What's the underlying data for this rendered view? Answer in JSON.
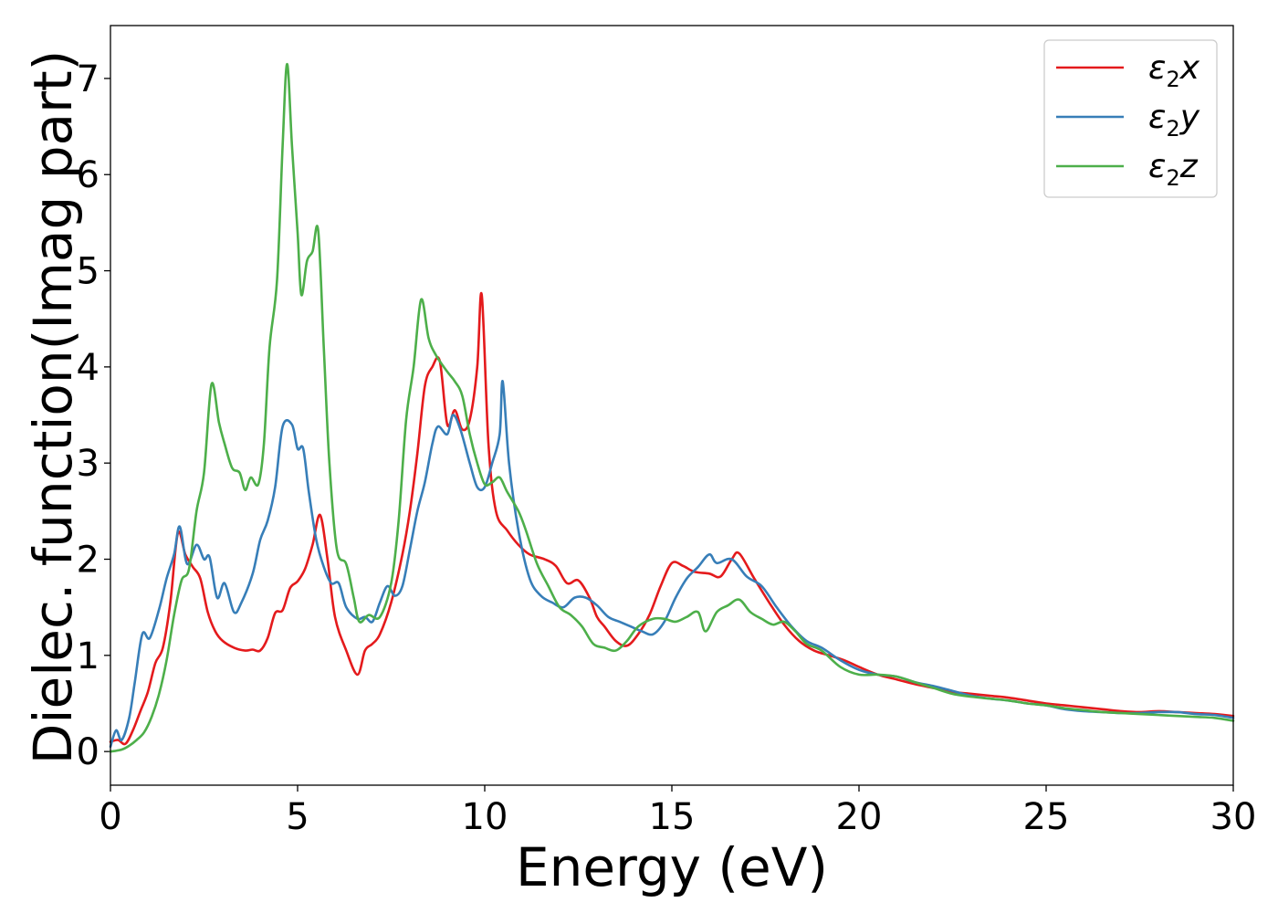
{
  "chart_data": {
    "type": "line",
    "title": "",
    "xlabel": "Energy (eV)",
    "ylabel": "Dielec. function(Imag part)",
    "xlim": [
      0,
      30
    ],
    "ylim": [
      -0.35,
      7.55
    ],
    "x_ticks": [
      0,
      5,
      10,
      15,
      20,
      25,
      30
    ],
    "y_ticks": [
      0,
      1,
      2,
      3,
      4,
      5,
      6,
      7
    ],
    "grid": false,
    "legend_position": "top-right",
    "series": [
      {
        "name": "ε2x",
        "legend": {
          "base": "ε",
          "sub": "2",
          "suffix": "x"
        },
        "color": "#e41a1c",
        "points": [
          [
            0,
            0.1
          ],
          [
            0.2,
            0.12
          ],
          [
            0.4,
            0.08
          ],
          [
            0.6,
            0.22
          ],
          [
            0.8,
            0.42
          ],
          [
            1.0,
            0.62
          ],
          [
            1.2,
            0.92
          ],
          [
            1.4,
            1.08
          ],
          [
            1.6,
            1.55
          ],
          [
            1.8,
            2.27
          ],
          [
            2.0,
            2.05
          ],
          [
            2.2,
            1.92
          ],
          [
            2.4,
            1.8
          ],
          [
            2.6,
            1.45
          ],
          [
            2.8,
            1.25
          ],
          [
            3.0,
            1.15
          ],
          [
            3.3,
            1.08
          ],
          [
            3.6,
            1.05
          ],
          [
            3.8,
            1.06
          ],
          [
            4.0,
            1.05
          ],
          [
            4.2,
            1.18
          ],
          [
            4.4,
            1.44
          ],
          [
            4.6,
            1.47
          ],
          [
            4.8,
            1.7
          ],
          [
            5.0,
            1.77
          ],
          [
            5.2,
            1.9
          ],
          [
            5.4,
            2.15
          ],
          [
            5.6,
            2.46
          ],
          [
            5.8,
            2.0
          ],
          [
            6.0,
            1.4
          ],
          [
            6.3,
            1.05
          ],
          [
            6.6,
            0.8
          ],
          [
            6.8,
            1.05
          ],
          [
            7.0,
            1.12
          ],
          [
            7.2,
            1.22
          ],
          [
            7.5,
            1.55
          ],
          [
            7.8,
            2.05
          ],
          [
            8.0,
            2.5
          ],
          [
            8.2,
            3.1
          ],
          [
            8.4,
            3.8
          ],
          [
            8.6,
            4.0
          ],
          [
            8.8,
            4.06
          ],
          [
            9.0,
            3.4
          ],
          [
            9.2,
            3.55
          ],
          [
            9.4,
            3.35
          ],
          [
            9.6,
            3.45
          ],
          [
            9.8,
            4.0
          ],
          [
            9.92,
            4.75
          ],
          [
            10.1,
            3.2
          ],
          [
            10.3,
            2.5
          ],
          [
            10.6,
            2.3
          ],
          [
            10.9,
            2.15
          ],
          [
            11.2,
            2.05
          ],
          [
            11.6,
            2.0
          ],
          [
            11.9,
            1.93
          ],
          [
            12.2,
            1.75
          ],
          [
            12.5,
            1.78
          ],
          [
            12.8,
            1.6
          ],
          [
            13.0,
            1.4
          ],
          [
            13.2,
            1.3
          ],
          [
            13.5,
            1.15
          ],
          [
            13.8,
            1.1
          ],
          [
            14.1,
            1.22
          ],
          [
            14.4,
            1.42
          ],
          [
            14.7,
            1.72
          ],
          [
            15.0,
            1.96
          ],
          [
            15.3,
            1.93
          ],
          [
            15.6,
            1.87
          ],
          [
            16.0,
            1.85
          ],
          [
            16.3,
            1.82
          ],
          [
            16.6,
            2.0
          ],
          [
            16.8,
            2.06
          ],
          [
            17.2,
            1.8
          ],
          [
            17.6,
            1.55
          ],
          [
            18.0,
            1.32
          ],
          [
            18.4,
            1.15
          ],
          [
            18.8,
            1.05
          ],
          [
            19.2,
            1.0
          ],
          [
            19.6,
            0.95
          ],
          [
            20.0,
            0.88
          ],
          [
            20.5,
            0.8
          ],
          [
            21.0,
            0.75
          ],
          [
            21.5,
            0.7
          ],
          [
            22.0,
            0.66
          ],
          [
            22.5,
            0.62
          ],
          [
            23.0,
            0.6
          ],
          [
            23.5,
            0.58
          ],
          [
            24.0,
            0.56
          ],
          [
            24.5,
            0.53
          ],
          [
            25.0,
            0.5
          ],
          [
            25.5,
            0.48
          ],
          [
            26.0,
            0.46
          ],
          [
            26.5,
            0.44
          ],
          [
            27.0,
            0.42
          ],
          [
            27.5,
            0.41
          ],
          [
            28.0,
            0.42
          ],
          [
            28.5,
            0.41
          ],
          [
            29.0,
            0.4
          ],
          [
            29.5,
            0.39
          ],
          [
            30.0,
            0.37
          ]
        ]
      },
      {
        "name": "ε2y",
        "legend": {
          "base": "ε",
          "sub": "2",
          "suffix": "y"
        },
        "color": "#377eb8",
        "points": [
          [
            0,
            0.05
          ],
          [
            0.15,
            0.22
          ],
          [
            0.3,
            0.12
          ],
          [
            0.5,
            0.35
          ],
          [
            0.65,
            0.72
          ],
          [
            0.85,
            1.22
          ],
          [
            1.05,
            1.18
          ],
          [
            1.3,
            1.48
          ],
          [
            1.5,
            1.8
          ],
          [
            1.7,
            2.05
          ],
          [
            1.85,
            2.34
          ],
          [
            2.05,
            1.95
          ],
          [
            2.3,
            2.15
          ],
          [
            2.5,
            2.0
          ],
          [
            2.65,
            2.02
          ],
          [
            2.85,
            1.6
          ],
          [
            3.05,
            1.75
          ],
          [
            3.3,
            1.45
          ],
          [
            3.5,
            1.55
          ],
          [
            3.8,
            1.85
          ],
          [
            4.0,
            2.2
          ],
          [
            4.2,
            2.4
          ],
          [
            4.4,
            2.75
          ],
          [
            4.6,
            3.38
          ],
          [
            4.85,
            3.4
          ],
          [
            5.0,
            3.15
          ],
          [
            5.15,
            3.15
          ],
          [
            5.3,
            2.7
          ],
          [
            5.5,
            2.2
          ],
          [
            5.7,
            1.92
          ],
          [
            5.9,
            1.75
          ],
          [
            6.1,
            1.75
          ],
          [
            6.3,
            1.5
          ],
          [
            6.6,
            1.38
          ],
          [
            6.8,
            1.4
          ],
          [
            7.0,
            1.35
          ],
          [
            7.2,
            1.55
          ],
          [
            7.4,
            1.72
          ],
          [
            7.6,
            1.62
          ],
          [
            7.8,
            1.72
          ],
          [
            8.0,
            2.1
          ],
          [
            8.2,
            2.5
          ],
          [
            8.4,
            2.8
          ],
          [
            8.6,
            3.2
          ],
          [
            8.75,
            3.38
          ],
          [
            9.0,
            3.3
          ],
          [
            9.15,
            3.5
          ],
          [
            9.35,
            3.35
          ],
          [
            9.6,
            3.0
          ],
          [
            9.8,
            2.75
          ],
          [
            10.0,
            2.75
          ],
          [
            10.2,
            3.0
          ],
          [
            10.4,
            3.3
          ],
          [
            10.48,
            3.85
          ],
          [
            10.65,
            3.0
          ],
          [
            10.9,
            2.3
          ],
          [
            11.2,
            1.8
          ],
          [
            11.5,
            1.62
          ],
          [
            11.8,
            1.55
          ],
          [
            12.1,
            1.5
          ],
          [
            12.4,
            1.6
          ],
          [
            12.7,
            1.6
          ],
          [
            13.0,
            1.52
          ],
          [
            13.3,
            1.4
          ],
          [
            13.6,
            1.35
          ],
          [
            13.9,
            1.3
          ],
          [
            14.2,
            1.25
          ],
          [
            14.5,
            1.22
          ],
          [
            14.8,
            1.35
          ],
          [
            15.1,
            1.6
          ],
          [
            15.4,
            1.8
          ],
          [
            15.7,
            1.92
          ],
          [
            16.0,
            2.05
          ],
          [
            16.2,
            1.96
          ],
          [
            16.6,
            2.0
          ],
          [
            17.0,
            1.82
          ],
          [
            17.4,
            1.72
          ],
          [
            17.8,
            1.5
          ],
          [
            18.2,
            1.3
          ],
          [
            18.6,
            1.15
          ],
          [
            19.0,
            1.08
          ],
          [
            19.5,
            0.95
          ],
          [
            20.0,
            0.85
          ],
          [
            20.5,
            0.8
          ],
          [
            21.0,
            0.78
          ],
          [
            21.5,
            0.72
          ],
          [
            22.0,
            0.68
          ],
          [
            22.5,
            0.63
          ],
          [
            23.0,
            0.58
          ],
          [
            23.5,
            0.55
          ],
          [
            24.0,
            0.53
          ],
          [
            24.5,
            0.5
          ],
          [
            25.0,
            0.48
          ],
          [
            25.5,
            0.44
          ],
          [
            26.0,
            0.42
          ],
          [
            26.5,
            0.41
          ],
          [
            27.0,
            0.4
          ],
          [
            27.5,
            0.4
          ],
          [
            28.0,
            0.41
          ],
          [
            28.5,
            0.41
          ],
          [
            29.0,
            0.39
          ],
          [
            29.5,
            0.38
          ],
          [
            30.0,
            0.35
          ]
        ]
      },
      {
        "name": "ε2z",
        "legend": {
          "base": "ε",
          "sub": "2",
          "suffix": "z"
        },
        "color": "#4daf4a",
        "points": [
          [
            0,
            0.0
          ],
          [
            0.3,
            0.02
          ],
          [
            0.5,
            0.06
          ],
          [
            0.7,
            0.12
          ],
          [
            0.9,
            0.2
          ],
          [
            1.1,
            0.36
          ],
          [
            1.3,
            0.6
          ],
          [
            1.5,
            0.95
          ],
          [
            1.7,
            1.42
          ],
          [
            1.9,
            1.78
          ],
          [
            2.1,
            1.9
          ],
          [
            2.3,
            2.5
          ],
          [
            2.5,
            2.9
          ],
          [
            2.7,
            3.82
          ],
          [
            2.9,
            3.42
          ],
          [
            3.05,
            3.2
          ],
          [
            3.25,
            2.95
          ],
          [
            3.45,
            2.9
          ],
          [
            3.6,
            2.72
          ],
          [
            3.75,
            2.85
          ],
          [
            3.95,
            2.78
          ],
          [
            4.1,
            3.2
          ],
          [
            4.25,
            4.2
          ],
          [
            4.45,
            4.9
          ],
          [
            4.6,
            6.3
          ],
          [
            4.72,
            7.15
          ],
          [
            4.85,
            6.3
          ],
          [
            5.0,
            5.4
          ],
          [
            5.1,
            4.75
          ],
          [
            5.25,
            5.1
          ],
          [
            5.4,
            5.2
          ],
          [
            5.55,
            5.42
          ],
          [
            5.7,
            4.2
          ],
          [
            5.85,
            3.0
          ],
          [
            6.05,
            2.1
          ],
          [
            6.3,
            1.95
          ],
          [
            6.5,
            1.6
          ],
          [
            6.65,
            1.35
          ],
          [
            6.9,
            1.42
          ],
          [
            7.2,
            1.4
          ],
          [
            7.5,
            1.75
          ],
          [
            7.7,
            2.4
          ],
          [
            7.9,
            3.45
          ],
          [
            8.1,
            4.0
          ],
          [
            8.3,
            4.7
          ],
          [
            8.5,
            4.3
          ],
          [
            8.7,
            4.12
          ],
          [
            9.0,
            3.95
          ],
          [
            9.2,
            3.85
          ],
          [
            9.4,
            3.7
          ],
          [
            9.6,
            3.3
          ],
          [
            9.8,
            3.0
          ],
          [
            10.0,
            2.78
          ],
          [
            10.2,
            2.8
          ],
          [
            10.4,
            2.85
          ],
          [
            10.6,
            2.7
          ],
          [
            10.9,
            2.5
          ],
          [
            11.1,
            2.3
          ],
          [
            11.4,
            1.95
          ],
          [
            11.7,
            1.72
          ],
          [
            12.0,
            1.5
          ],
          [
            12.3,
            1.42
          ],
          [
            12.6,
            1.3
          ],
          [
            12.9,
            1.12
          ],
          [
            13.2,
            1.08
          ],
          [
            13.5,
            1.05
          ],
          [
            13.8,
            1.15
          ],
          [
            14.1,
            1.3
          ],
          [
            14.5,
            1.38
          ],
          [
            14.8,
            1.38
          ],
          [
            15.1,
            1.35
          ],
          [
            15.4,
            1.4
          ],
          [
            15.7,
            1.45
          ],
          [
            15.9,
            1.25
          ],
          [
            16.2,
            1.45
          ],
          [
            16.5,
            1.52
          ],
          [
            16.8,
            1.58
          ],
          [
            17.1,
            1.45
          ],
          [
            17.4,
            1.38
          ],
          [
            17.7,
            1.32
          ],
          [
            18.0,
            1.35
          ],
          [
            18.3,
            1.25
          ],
          [
            18.6,
            1.12
          ],
          [
            19.0,
            1.05
          ],
          [
            19.5,
            0.88
          ],
          [
            20.0,
            0.8
          ],
          [
            20.5,
            0.8
          ],
          [
            21.0,
            0.78
          ],
          [
            21.5,
            0.72
          ],
          [
            22.0,
            0.66
          ],
          [
            22.5,
            0.6
          ],
          [
            23.0,
            0.57
          ],
          [
            23.5,
            0.55
          ],
          [
            24.0,
            0.53
          ],
          [
            24.5,
            0.5
          ],
          [
            25.0,
            0.48
          ],
          [
            25.5,
            0.45
          ],
          [
            26.0,
            0.43
          ],
          [
            26.5,
            0.41
          ],
          [
            27.0,
            0.4
          ],
          [
            27.5,
            0.39
          ],
          [
            28.0,
            0.38
          ],
          [
            28.5,
            0.37
          ],
          [
            29.0,
            0.36
          ],
          [
            29.5,
            0.35
          ],
          [
            30.0,
            0.32
          ]
        ]
      }
    ]
  }
}
